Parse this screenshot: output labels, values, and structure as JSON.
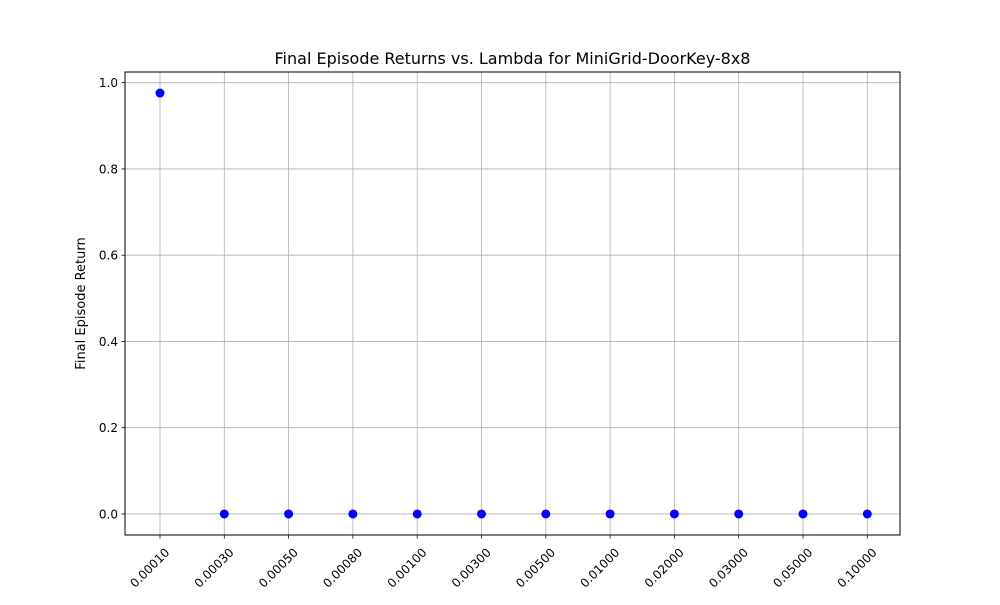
{
  "chart_data": {
    "type": "scatter",
    "title": "Final Episode Returns vs. Lambda for MiniGrid-DoorKey-8x8",
    "xlabel": "",
    "ylabel": "Final Episode Return",
    "categories": [
      "0.00010",
      "0.00030",
      "0.00050",
      "0.00080",
      "0.00100",
      "0.00300",
      "0.00500",
      "0.01000",
      "0.02000",
      "0.03000",
      "0.05000",
      "0.10000"
    ],
    "series": [
      {
        "values": [
          0.976,
          0.0,
          0.0,
          0.0,
          0.0,
          0.0,
          0.0,
          0.0,
          0.0,
          0.0,
          0.0,
          0.0
        ],
        "color": "#0000ff"
      }
    ],
    "yticks": [
      0.0,
      0.2,
      0.4,
      0.6,
      0.8,
      1.0
    ],
    "ytick_labels": [
      "0.0",
      "0.2",
      "0.4",
      "0.6",
      "0.8",
      "1.0"
    ],
    "ylim": [
      -0.0488,
      1.0248
    ],
    "grid": true,
    "grid_color": "#b0b0b0",
    "xtick_rotation": "45"
  }
}
